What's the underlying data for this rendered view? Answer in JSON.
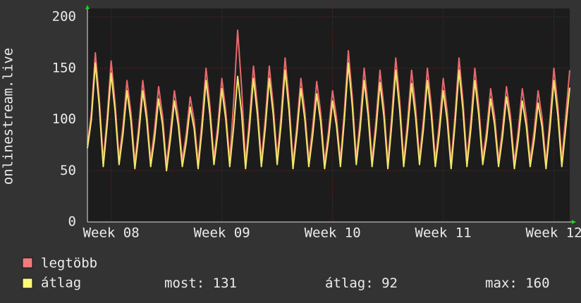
{
  "chart_data": {
    "type": "line",
    "y_label": "onlinestream.live",
    "ylim": [
      0,
      200
    ],
    "yticks": [
      0,
      50,
      100,
      150,
      200
    ],
    "xlim": [
      -1.5,
      29
    ],
    "xticks": [
      {
        "value": 0,
        "label": "Week 08"
      },
      {
        "value": 7,
        "label": "Week 09"
      },
      {
        "value": 14,
        "label": "Week 10"
      },
      {
        "value": 21,
        "label": "Week 11"
      },
      {
        "value": 28,
        "label": "Week 12"
      }
    ],
    "grid": true,
    "x": [
      -1.5,
      -1.25,
      -1,
      -0.75,
      -0.5,
      -0.25,
      0,
      0.25,
      0.5,
      0.75,
      1,
      1.25,
      1.5,
      1.75,
      2,
      2.25,
      2.5,
      2.75,
      3,
      3.25,
      3.5,
      3.75,
      4,
      4.25,
      4.5,
      4.75,
      5,
      5.25,
      5.5,
      5.75,
      6,
      6.25,
      6.5,
      6.75,
      7,
      7.25,
      7.5,
      7.75,
      8,
      8.25,
      8.5,
      8.75,
      9,
      9.25,
      9.5,
      9.75,
      10,
      10.25,
      10.5,
      10.75,
      11,
      11.25,
      11.5,
      11.75,
      12,
      12.25,
      12.5,
      12.75,
      13,
      13.25,
      13.5,
      13.75,
      14,
      14.25,
      14.5,
      14.75,
      15,
      15.25,
      15.5,
      15.75,
      16,
      16.25,
      16.5,
      16.75,
      17,
      17.25,
      17.5,
      17.75,
      18,
      18.25,
      18.5,
      18.75,
      19,
      19.25,
      19.5,
      19.75,
      20,
      20.25,
      20.5,
      20.75,
      21,
      21.25,
      21.5,
      21.75,
      22,
      22.25,
      22.5,
      22.75,
      23,
      23.25,
      23.5,
      23.75,
      24,
      24.25,
      24.5,
      24.75,
      25,
      25.25,
      25.5,
      25.75,
      26,
      26.25,
      26.5,
      26.75,
      27,
      27.25,
      27.5,
      27.75,
      28,
      28.25,
      28.5,
      28.75,
      29
    ],
    "series": [
      {
        "name": "legtöbb",
        "color": "#e8686c",
        "values": [
          75,
          107,
          165,
          120,
          60,
          103,
          157,
          116,
          62,
          94,
          138,
          107,
          58,
          94,
          138,
          107,
          60,
          91,
          132,
          104,
          56,
          89,
          128,
          102,
          60,
          86,
          122,
          99,
          58,
          100,
          150,
          113,
          62,
          95,
          140,
          108,
          60,
          118,
          187,
          131,
          58,
          101,
          152,
          114,
          60,
          101,
          152,
          114,
          62,
          105,
          160,
          118,
          58,
          95,
          140,
          108,
          60,
          94,
          137,
          107,
          58,
          89,
          128,
          102,
          60,
          109,
          167,
          122,
          62,
          100,
          150,
          113,
          60,
          99,
          148,
          112,
          58,
          105,
          160,
          118,
          60,
          99,
          148,
          112,
          62,
          100,
          150,
          113,
          60,
          95,
          140,
          108,
          58,
          105,
          160,
          118,
          60,
          100,
          150,
          113,
          62,
          90,
          130,
          103,
          60,
          91,
          132,
          104,
          58,
          90,
          130,
          103,
          60,
          89,
          128,
          102,
          58,
          100,
          150,
          113,
          60,
          104,
          148
        ]
      },
      {
        "name": "átlag",
        "color": "#f2e66c",
        "values": [
          72,
          100,
          155,
          113,
          54,
          95,
          145,
          108,
          56,
          86,
          128,
          99,
          52,
          86,
          128,
          99,
          54,
          82,
          120,
          95,
          50,
          81,
          118,
          94,
          54,
          78,
          112,
          91,
          52,
          91,
          138,
          104,
          56,
          87,
          130,
          100,
          54,
          93,
          142,
          106,
          52,
          92,
          140,
          105,
          54,
          92,
          140,
          105,
          56,
          96,
          148,
          109,
          52,
          87,
          130,
          100,
          54,
          85,
          125,
          98,
          52,
          81,
          118,
          94,
          54,
          100,
          155,
          113,
          56,
          91,
          138,
          104,
          54,
          90,
          136,
          103,
          52,
          96,
          148,
          109,
          54,
          90,
          135,
          103,
          56,
          91,
          138,
          104,
          54,
          86,
          128,
          99,
          52,
          96,
          148,
          109,
          54,
          91,
          138,
          104,
          56,
          82,
          120,
          95,
          54,
          83,
          122,
          96,
          52,
          81,
          118,
          94,
          54,
          80,
          116,
          93,
          52,
          91,
          138,
          104,
          54,
          92,
          131
        ]
      }
    ],
    "legend_colors": [
      "#f47a7c",
      "#fbfb78"
    ],
    "stats": [
      {
        "label": "most:",
        "value": 131
      },
      {
        "label": "átlag:",
        "value": 92
      },
      {
        "label": "max:",
        "value": 160
      }
    ]
  }
}
